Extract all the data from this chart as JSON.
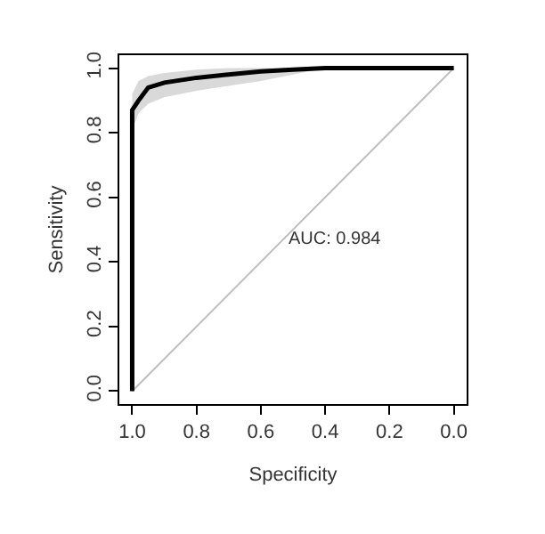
{
  "chart_data": {
    "type": "line",
    "xlabel": "Specificity",
    "ylabel": "Sensitivity",
    "annotations": [
      "AUC: 0.984"
    ],
    "xlim": [
      1.04,
      -0.04
    ],
    "ylim": [
      -0.04,
      1.04
    ],
    "xticks": [
      {
        "value": 1,
        "label": "1.0"
      },
      0.8,
      0.6,
      0.4,
      0.2,
      {
        "value": 0,
        "label": "0.0"
      }
    ],
    "yticks": [
      {
        "value": 0,
        "label": "0.0"
      },
      0.2,
      0.4,
      0.6,
      0.8,
      {
        "value": 1,
        "label": "1.0"
      }
    ],
    "grid": false,
    "marker": "none",
    "series": [
      {
        "color": "#bebebe",
        "x": [
          1,
          0
        ],
        "values": [
          0,
          1
        ]
      },
      {
        "color": "#000000",
        "x": [
          1,
          1,
          0.98,
          0.95,
          0.9,
          0.8,
          0.7,
          0.6,
          0.5,
          0.4,
          0
        ],
        "values": [
          0,
          0.87,
          0.9,
          0.94,
          0.955,
          0.97,
          0.98,
          0.99,
          0.995,
          1,
          1
        ],
        "lower": [
          null,
          0.81,
          0.86,
          0.89,
          0.91,
          0.93,
          0.945,
          0.96,
          0.98,
          1,
          null
        ],
        "upper": [
          null,
          0.92,
          0.96,
          0.975,
          0.985,
          0.995,
          1,
          1,
          1,
          1,
          null
        ]
      }
    ]
  }
}
